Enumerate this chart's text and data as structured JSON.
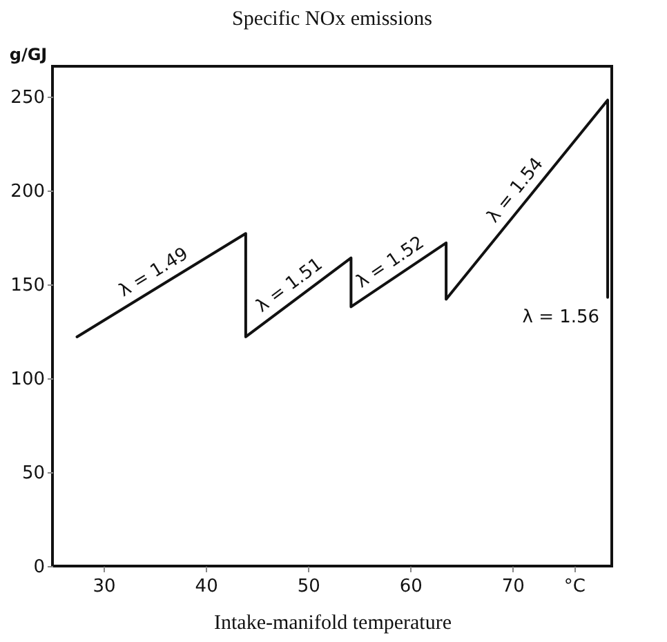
{
  "chart_data": {
    "type": "line",
    "title": "Specific NOx emissions",
    "xlabel": "Intake-manifold temperature",
    "ylabel": "g/GJ",
    "x": [
      27.4,
      43.9,
      43.9,
      54.2,
      54.2,
      63.5,
      63.5,
      79.3,
      79.3
    ],
    "series": [
      {
        "color": "#111111",
        "values": [
          122,
          177,
          122,
          164,
          138,
          172,
          142,
          248,
          143
        ]
      }
    ],
    "xlim": [
      25,
      79.7
    ],
    "xticks": [
      30,
      40,
      50,
      60,
      70,
      {
        "value": 76,
        "label": "°C"
      }
    ],
    "ylim": [
      0,
      266
    ],
    "yticks": [
      0,
      50,
      100,
      150,
      200,
      250
    ],
    "grid": false,
    "marker": "none",
    "line_style": "solid",
    "annotations": [
      "λ = 1.49",
      "λ = 1.51",
      "λ = 1.52",
      "λ = 1.54",
      "λ = 1.56"
    ]
  }
}
